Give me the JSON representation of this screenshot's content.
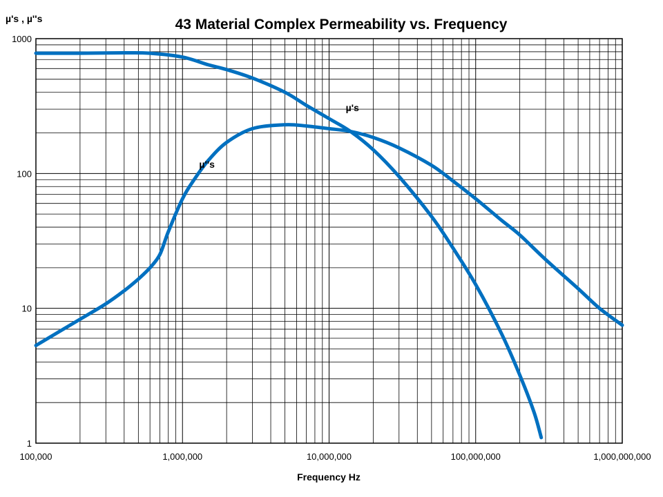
{
  "chart_data": {
    "type": "line",
    "title": "43 Material Complex Permeability vs. Frequency",
    "xlabel": "Frequency Hz",
    "ylabel": "µ's , µ''s",
    "x_scale": "log",
    "y_scale": "log",
    "xlim": [
      100000,
      1000000000
    ],
    "ylim": [
      1,
      1000
    ],
    "grid": true,
    "x_tick_labels": [
      "100,000",
      "1,000,000",
      "10,000,000",
      "100,000,000",
      "1,000,000,000"
    ],
    "y_tick_labels": [
      "1",
      "10",
      "100",
      "1000"
    ],
    "x_ticks": [
      100000,
      1000000,
      10000000,
      100000000,
      1000000000
    ],
    "y_ticks": [
      1,
      10,
      100,
      1000
    ],
    "series": [
      {
        "name": "µ's",
        "x": [
          100000,
          200000,
          400000,
          600000,
          1000000,
          1500000,
          2000000,
          3000000,
          5000000,
          7000000,
          10000000,
          14000000,
          20000000,
          30000000,
          50000000,
          70000000,
          100000000,
          150000000,
          200000000,
          250000000,
          280000000
        ],
        "y": [
          780,
          780,
          785,
          780,
          730,
          640,
          590,
          510,
          400,
          320,
          255,
          205,
          150,
          95,
          48,
          28,
          15,
          6.5,
          3.2,
          1.7,
          1.1
        ]
      },
      {
        "name": "µ''s",
        "x": [
          100000,
          200000,
          300000,
          400000,
          500000,
          600000,
          700000,
          800000,
          1000000,
          1200000,
          1500000,
          2000000,
          3000000,
          5000000,
          7000000,
          10000000,
          14000000,
          20000000,
          30000000,
          50000000,
          70000000,
          100000000,
          150000000,
          200000000,
          300000000,
          500000000,
          700000000,
          1000000000
        ],
        "y": [
          5.3,
          8.3,
          10.8,
          13.5,
          16.5,
          20,
          25,
          37,
          65,
          90,
          125,
          170,
          215,
          230,
          225,
          215,
          205,
          185,
          155,
          115,
          88,
          65,
          45,
          35,
          23,
          14,
          10,
          7.5
        ]
      }
    ],
    "annotations": [
      {
        "text": "µ's",
        "x": 13000000,
        "y": 290
      },
      {
        "text": "µ''s",
        "x": 1300000,
        "y": 110
      }
    ]
  }
}
